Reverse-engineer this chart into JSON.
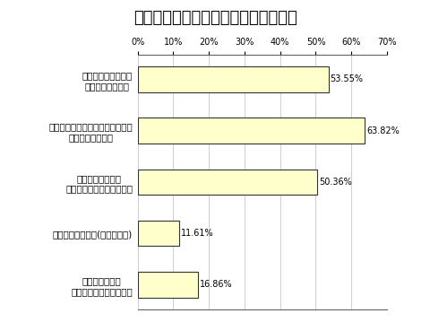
{
  "title": "どのような影響ですか。（複数回答）",
  "categories": [
    "値上がりした商品を\n買う量を減らした",
    "安売り店や、特売品、低価格品を\n使うようになった",
    "外出を控えたり、\n欲しいものの購入を止めた",
    "小遣いを減らした(減らされた)",
    "貯金が減った、\nあるいはローンが増えた"
  ],
  "values": [
    53.55,
    63.82,
    50.36,
    11.61,
    16.86
  ],
  "bar_color": "#ffffcc",
  "bar_edge_color": "#333333",
  "background_color": "#ffffff",
  "xlim": [
    0,
    70
  ],
  "xticks": [
    0,
    10,
    20,
    30,
    40,
    50,
    60,
    70
  ],
  "xtick_labels": [
    "0%",
    "10%",
    "20%",
    "30%",
    "40%",
    "50%",
    "60%",
    "70%"
  ],
  "title_fontsize": 13,
  "label_fontsize": 7.5,
  "value_fontsize": 7,
  "tick_fontsize": 7,
  "grid_color": "#bbbbbb",
  "bar_height": 0.5
}
